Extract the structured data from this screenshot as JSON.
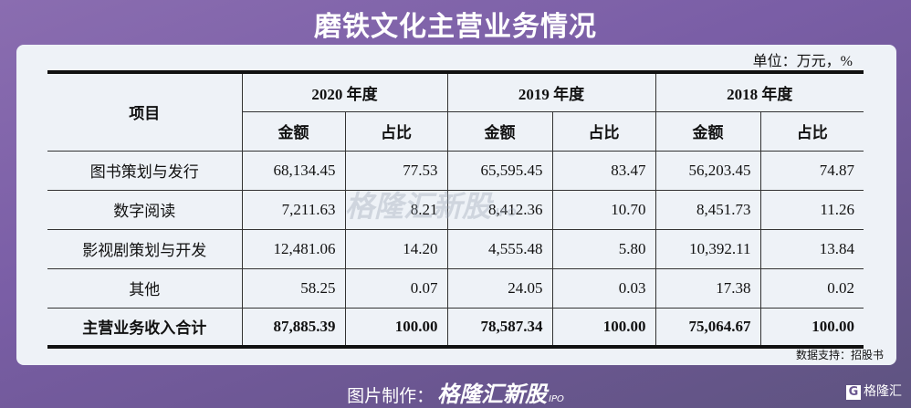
{
  "title": "磨铁文化主营业务情况",
  "unit": "单位：万元，%",
  "table": {
    "item_header": "项目",
    "years": [
      "2020 年度",
      "2019 年度",
      "2018 年度"
    ],
    "sub_headers": [
      "金额",
      "占比"
    ],
    "rows": [
      {
        "name": "图书策划与发行",
        "values": [
          "68,134.45",
          "77.53",
          "65,595.45",
          "83.47",
          "56,203.45",
          "74.87"
        ]
      },
      {
        "name": "数字阅读",
        "values": [
          "7,211.63",
          "8.21",
          "8,412.36",
          "10.70",
          "8,451.73",
          "11.26"
        ]
      },
      {
        "name": "影视剧策划与开发",
        "values": [
          "12,481.06",
          "14.20",
          "4,555.48",
          "5.80",
          "10,392.11",
          "13.84"
        ]
      },
      {
        "name": "其他",
        "values": [
          "58.25",
          "0.07",
          "24.05",
          "0.03",
          "17.38",
          "0.02"
        ]
      },
      {
        "name": "主营业务收入合计",
        "values": [
          "87,885.39",
          "100.00",
          "78,587.34",
          "100.00",
          "75,064.67",
          "100.00"
        ]
      }
    ]
  },
  "source": "数据支持：招股书",
  "watermark": "格隆汇新股 IPO",
  "footer": {
    "label": "图片制作：",
    "brand": "格隆汇新股",
    "brand_suffix": "IPO"
  },
  "logo": {
    "mark": "G",
    "text": "格隆汇"
  }
}
